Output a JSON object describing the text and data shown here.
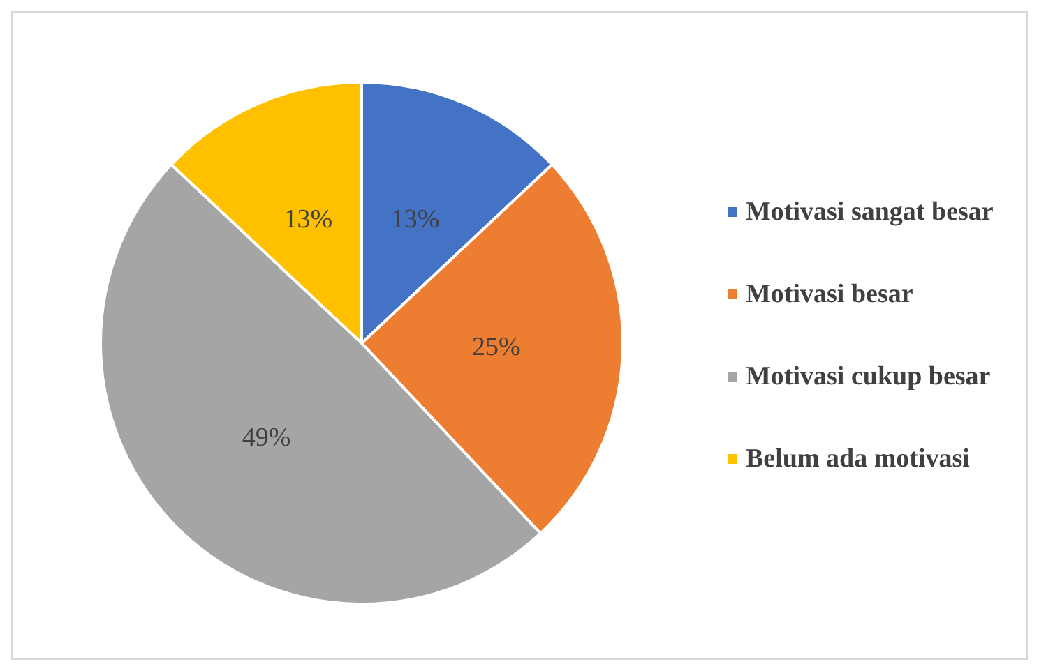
{
  "chart_data": {
    "type": "pie",
    "categories": [
      "Motivasi sangat besar",
      "Motivasi besar",
      "Motivasi cukup besar",
      "Belum ada motivasi"
    ],
    "values": [
      13,
      25,
      49,
      13
    ],
    "colors": [
      "#4472c4",
      "#ed7d31",
      "#a5a5a5",
      "#ffc000"
    ],
    "value_labels": [
      "13%",
      "25%",
      "49%",
      "13%"
    ],
    "legend": "right"
  }
}
